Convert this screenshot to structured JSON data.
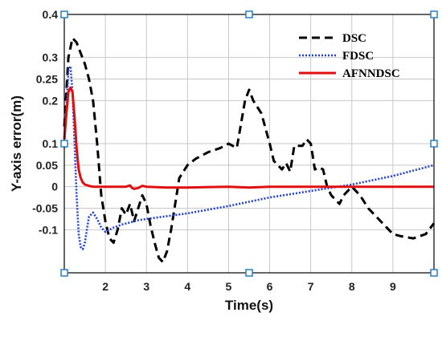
{
  "chart_data": {
    "type": "line",
    "title": "",
    "xlabel": "Time(s)",
    "ylabel": "Y-axis error(m)",
    "xlim": [
      1,
      10
    ],
    "ylim": [
      -0.2,
      0.4
    ],
    "grid": true,
    "legend_position": "top-right",
    "x_ticks": [
      2,
      3,
      4,
      5,
      6,
      7,
      8,
      9
    ],
    "y_ticks": [
      {
        "value": 0.4,
        "label": "0.4"
      },
      {
        "value": 0.3,
        "label": "0.3"
      },
      {
        "value": 0.25,
        "label": "0.25"
      },
      {
        "value": 0.2,
        "label": "0.2"
      },
      {
        "value": 0.1,
        "label": "0.1"
      },
      {
        "value": 0.05,
        "label": "0.05"
      },
      {
        "value": 0,
        "label": "0"
      },
      {
        "value": -0.05,
        "label": "-0.05"
      },
      {
        "value": -0.1,
        "label": "-0.1"
      }
    ],
    "series": [
      {
        "name": "DSC",
        "color": "#000000",
        "style": "dashed",
        "x": [
          1.0,
          1.05,
          1.1,
          1.2,
          1.3,
          1.4,
          1.5,
          1.6,
          1.7,
          1.8,
          1.9,
          2.0,
          2.1,
          2.2,
          2.3,
          2.4,
          2.5,
          2.6,
          2.7,
          2.8,
          2.9,
          3.0,
          3.1,
          3.2,
          3.3,
          3.4,
          3.5,
          3.6,
          3.7,
          3.8,
          4.0,
          4.2,
          4.5,
          4.8,
          5.0,
          5.2,
          5.4,
          5.5,
          5.6,
          5.8,
          6.0,
          6.1,
          6.2,
          6.3,
          6.4,
          6.5,
          6.6,
          6.8,
          6.9,
          7.0,
          7.1,
          7.2,
          7.3,
          7.4,
          7.5,
          7.7,
          7.8,
          8.0,
          8.2,
          8.4,
          8.6,
          8.8,
          9.0,
          9.2,
          9.5,
          9.8,
          10.0
        ],
        "y": [
          0.14,
          0.22,
          0.3,
          0.345,
          0.335,
          0.31,
          0.285,
          0.25,
          0.2,
          0.1,
          -0.02,
          -0.08,
          -0.12,
          -0.13,
          -0.1,
          -0.05,
          -0.065,
          -0.04,
          -0.08,
          -0.05,
          -0.02,
          -0.04,
          -0.09,
          -0.13,
          -0.165,
          -0.175,
          -0.15,
          -0.1,
          -0.04,
          0.02,
          0.05,
          0.065,
          0.08,
          0.09,
          0.1,
          0.09,
          0.2,
          0.225,
          0.2,
          0.17,
          0.1,
          0.06,
          0.05,
          0.04,
          0.055,
          0.035,
          0.095,
          0.095,
          0.11,
          0.1,
          0.04,
          0.045,
          0.04,
          0.0,
          -0.02,
          -0.04,
          -0.02,
          0.0,
          -0.02,
          -0.05,
          -0.07,
          -0.09,
          -0.11,
          -0.115,
          -0.12,
          -0.11,
          -0.085
        ]
      },
      {
        "name": "FDSC",
        "color": "#1f3fd6",
        "style": "dotted",
        "x": [
          1.0,
          1.05,
          1.1,
          1.15,
          1.2,
          1.25,
          1.3,
          1.35,
          1.4,
          1.45,
          1.5,
          1.55,
          1.6,
          1.7,
          1.8,
          1.9,
          2.0,
          2.2,
          2.4,
          2.6,
          2.8,
          3.0,
          4.0,
          5.0,
          6.0,
          7.0,
          8.0,
          9.0,
          10.0
        ],
        "y": [
          0.09,
          0.18,
          0.27,
          0.28,
          0.22,
          0.1,
          -0.02,
          -0.11,
          -0.14,
          -0.145,
          -0.13,
          -0.1,
          -0.07,
          -0.06,
          -0.075,
          -0.095,
          -0.105,
          -0.095,
          -0.088,
          -0.083,
          -0.078,
          -0.075,
          -0.062,
          -0.045,
          -0.025,
          -0.01,
          0.005,
          0.025,
          0.05
        ]
      },
      {
        "name": "AFNNDSC",
        "color": "#e01010",
        "style": "solid",
        "x": [
          1.0,
          1.05,
          1.1,
          1.15,
          1.2,
          1.25,
          1.3,
          1.35,
          1.4,
          1.45,
          1.5,
          1.6,
          1.7,
          1.8,
          2.0,
          2.3,
          2.5,
          2.6,
          2.65,
          2.7,
          2.8,
          2.9,
          3.0,
          3.5,
          4.0,
          5.0,
          5.5,
          6.0,
          7.0,
          8.0,
          9.0,
          10.0
        ],
        "y": [
          0.11,
          0.17,
          0.22,
          0.23,
          0.22,
          0.16,
          0.09,
          0.04,
          0.02,
          0.01,
          0.005,
          0.002,
          0.0,
          0.0,
          0.0,
          0.0,
          0.0,
          0.003,
          -0.003,
          -0.005,
          -0.003,
          0.002,
          0.0,
          -0.002,
          -0.002,
          0.0,
          -0.002,
          0.0,
          0.0,
          0.0,
          0.0,
          0.0
        ]
      }
    ]
  }
}
